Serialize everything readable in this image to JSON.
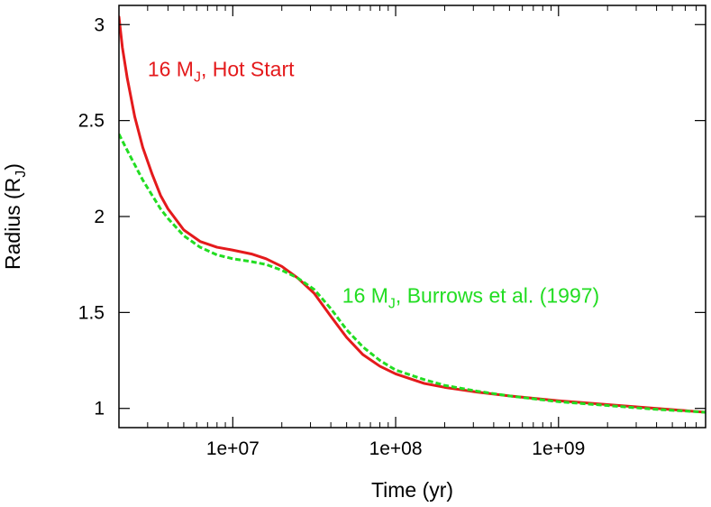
{
  "chart_data": {
    "type": "line",
    "xlabel": "Time (yr)",
    "ylabel": {
      "main": "Radius (R",
      "sub": "J",
      "close": ")"
    },
    "x_scale": "log",
    "xlim": [
      2000000,
      8000000000
    ],
    "ylim": [
      0.9,
      3.1
    ],
    "x_ticks": [
      {
        "value": 10000000,
        "label": "1e+07"
      },
      {
        "value": 100000000,
        "label": "1e+08"
      },
      {
        "value": 1000000000,
        "label": "1e+09"
      }
    ],
    "y_ticks": [
      {
        "value": 1,
        "label": "1"
      },
      {
        "value": 1.5,
        "label": "1.5"
      },
      {
        "value": 2,
        "label": "2"
      },
      {
        "value": 2.5,
        "label": "2.5"
      },
      {
        "value": 3,
        "label": "3"
      }
    ],
    "grid": false,
    "series": [
      {
        "label": {
          "pre": "16 M",
          "sub": "J",
          "post": ", Hot Start"
        },
        "color": "#e41a1c",
        "style": "solid",
        "label_at": {
          "x": 3000000,
          "y": 2.73
        },
        "points": [
          [
            2000000,
            3.04
          ],
          [
            2100000,
            2.88
          ],
          [
            2250000,
            2.72
          ],
          [
            2500000,
            2.52
          ],
          [
            2800000,
            2.36
          ],
          [
            3200000,
            2.22
          ],
          [
            3600000,
            2.11
          ],
          [
            4000000,
            2.04
          ],
          [
            5000000,
            1.93
          ],
          [
            6300000,
            1.87
          ],
          [
            8000000,
            1.84
          ],
          [
            10000000,
            1.825
          ],
          [
            13000000,
            1.805
          ],
          [
            16000000,
            1.78
          ],
          [
            20000000,
            1.74
          ],
          [
            25000000,
            1.68
          ],
          [
            31600000,
            1.6
          ],
          [
            40000000,
            1.48
          ],
          [
            50000000,
            1.37
          ],
          [
            63000000,
            1.28
          ],
          [
            80000000,
            1.22
          ],
          [
            100000000,
            1.18
          ],
          [
            150000000,
            1.13
          ],
          [
            200000000,
            1.11
          ],
          [
            316000000,
            1.085
          ],
          [
            500000000,
            1.065
          ],
          [
            1000000000,
            1.04
          ],
          [
            2000000000,
            1.02
          ],
          [
            4000000000,
            1.0
          ],
          [
            8000000000,
            0.98
          ]
        ]
      },
      {
        "label": {
          "pre": "16 M",
          "sub": "J",
          "post": ", Burrows et al. (1997)"
        },
        "color": "#22dd22",
        "style": "dashed",
        "label_at": {
          "x": 47000000,
          "y": 1.55
        },
        "points": [
          [
            2000000,
            2.43
          ],
          [
            2200000,
            2.36
          ],
          [
            2500000,
            2.27
          ],
          [
            2800000,
            2.19
          ],
          [
            3200000,
            2.11
          ],
          [
            3600000,
            2.04
          ],
          [
            4000000,
            1.99
          ],
          [
            5000000,
            1.9
          ],
          [
            6300000,
            1.84
          ],
          [
            8000000,
            1.8
          ],
          [
            10000000,
            1.78
          ],
          [
            13000000,
            1.765
          ],
          [
            16000000,
            1.75
          ],
          [
            20000000,
            1.72
          ],
          [
            25000000,
            1.68
          ],
          [
            31600000,
            1.62
          ],
          [
            40000000,
            1.52
          ],
          [
            50000000,
            1.41
          ],
          [
            63000000,
            1.32
          ],
          [
            80000000,
            1.25
          ],
          [
            100000000,
            1.2
          ],
          [
            150000000,
            1.15
          ],
          [
            200000000,
            1.12
          ],
          [
            316000000,
            1.09
          ],
          [
            500000000,
            1.065
          ],
          [
            1000000000,
            1.035
          ],
          [
            2000000000,
            1.015
          ],
          [
            4000000000,
            0.995
          ],
          [
            8000000000,
            0.98
          ]
        ]
      }
    ]
  }
}
